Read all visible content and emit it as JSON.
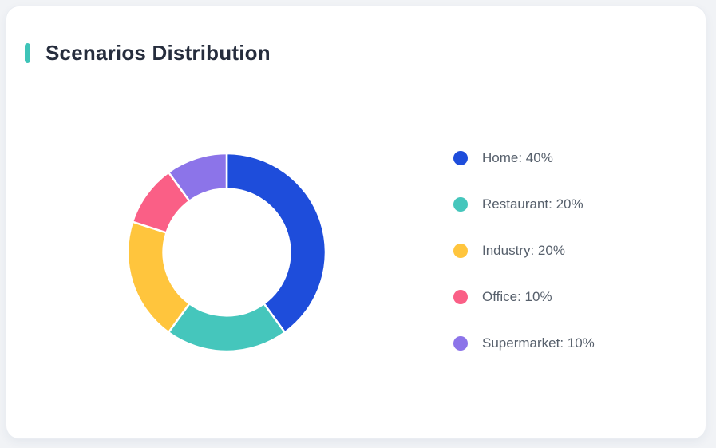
{
  "page": {
    "background_color": "#F1F3F6"
  },
  "card": {
    "title": "Scenarios Distribution",
    "title_color": "#262D3D",
    "accent_color": "#3EC4B8",
    "background_color": "#FFFFFF"
  },
  "chart_data": {
    "type": "pie",
    "subtype": "donut",
    "title": "Scenarios Distribution",
    "start_angle_deg": 0,
    "direction": "clockwise",
    "inner_radius_ratio": 0.64,
    "slice_border_color": "#FFFFFF",
    "slice_border_width": 2.5,
    "legend_position": "right",
    "legend_text_color": "#57606C",
    "unit": "%",
    "series": [
      {
        "label": "Home",
        "value": 40,
        "color": "#1E4DDB",
        "legend_text": "Home: 40%"
      },
      {
        "label": "Restaurant",
        "value": 20,
        "color": "#45C6BC",
        "legend_text": "Restaurant: 20%"
      },
      {
        "label": "Industry",
        "value": 20,
        "color": "#FFC53D",
        "legend_text": "Industry: 20%"
      },
      {
        "label": "Office",
        "value": 10,
        "color": "#FA5F86",
        "legend_text": "Office: 10%"
      },
      {
        "label": "Supermarket",
        "value": 10,
        "color": "#8C74E9",
        "legend_text": "Supermarket: 10%"
      }
    ]
  }
}
